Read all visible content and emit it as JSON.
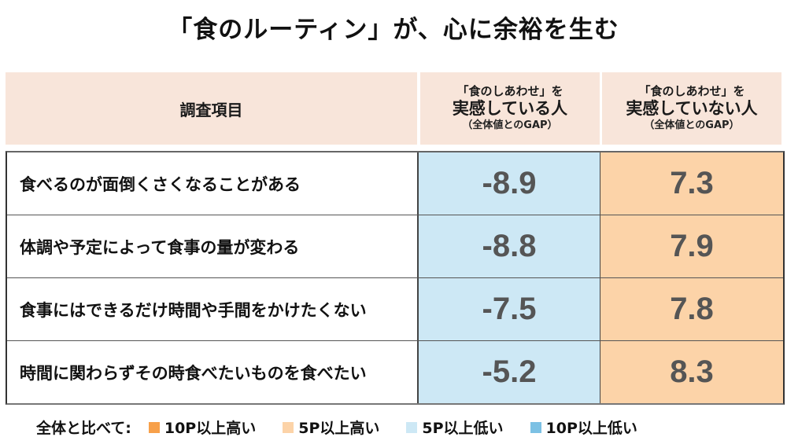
{
  "title": "「食のルーティン」が、心に余裕を生む",
  "header": {
    "item_col": "調査項目",
    "group1": {
      "line1": "「食のしあわせ」を",
      "line2": "実感している人",
      "line3": "（全体値とのGAP）"
    },
    "group2": {
      "line1": "「食のしあわせ」を",
      "line2": "実感していない人",
      "line3": "（全体値とのGAP）"
    }
  },
  "rows": [
    {
      "item": "食べるのが面倒くさくなることがある",
      "v1": "-8.9",
      "v2": "7.3"
    },
    {
      "item": "体調や予定によって食事の量が変わる",
      "v1": "-8.8",
      "v2": "7.9"
    },
    {
      "item": "食事にはできるだけ時間や手間をかけたくない",
      "v1": "-7.5",
      "v2": "7.8"
    },
    {
      "item": "時間に関わらずその時食べたいものを食べたい",
      "v1": "-5.2",
      "v2": "8.3"
    }
  ],
  "legend": {
    "label": "全体と比べて:",
    "items": [
      {
        "label": "10P以上高い",
        "color": "#f7a04a"
      },
      {
        "label": "5P以上高い",
        "color": "#fcd3a8"
      },
      {
        "label": "5P以上低い",
        "color": "#cde8f5"
      },
      {
        "label": "10P以上低い",
        "color": "#7cc1e4"
      }
    ]
  },
  "colors": {
    "header_bg": "#f8e5da",
    "low_5p": "#cde8f5",
    "high_5p": "#fcd3a8"
  },
  "chart_data": {
    "type": "table",
    "title": "「食のルーティン」が、心に余裕を生む",
    "columns": [
      "調査項目",
      "「食のしあわせ」を実感している人（全体値とのGAP）",
      "「食のしあわせ」を実感していない人（全体値とのGAP）"
    ],
    "categories": [
      "食べるのが面倒くさくなることがある",
      "体調や予定によって食事の量が変わる",
      "食事にはできるだけ時間や手間をかけたくない",
      "時間に関わらずその時食べたいものを食べたい"
    ],
    "series": [
      {
        "name": "「食のしあわせ」を実感している人",
        "values": [
          -8.9,
          -8.8,
          -7.5,
          -5.2
        ],
        "shade": "5P以上低い"
      },
      {
        "name": "「食のしあわせ」を実感していない人",
        "values": [
          7.3,
          7.9,
          7.8,
          8.3
        ],
        "shade": "5P以上高い"
      }
    ],
    "legend": [
      "10P以上高い",
      "5P以上高い",
      "5P以上低い",
      "10P以上低い"
    ],
    "legend_position": "bottom"
  }
}
